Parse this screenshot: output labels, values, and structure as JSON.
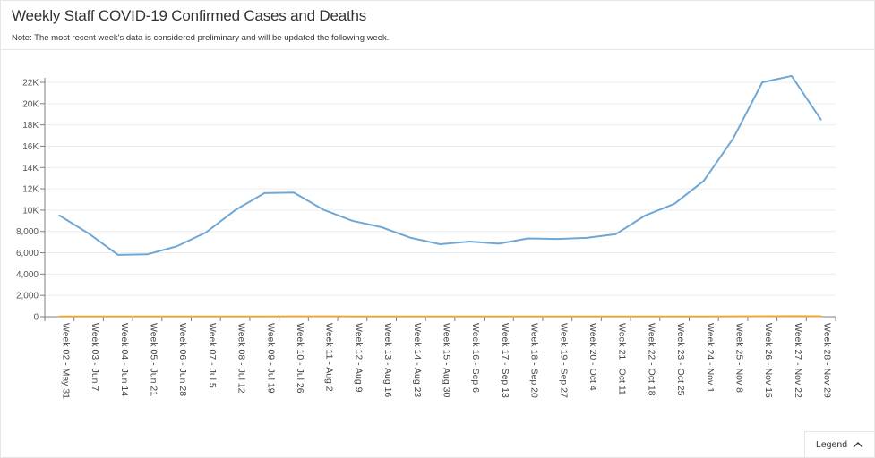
{
  "header": {
    "title": "Weekly Staff COVID-19 Confirmed Cases and Deaths",
    "note": "Note: The most recent week's data is considered preliminary and will be updated the following week."
  },
  "legend_button": {
    "label": "Legend",
    "icon": "chevron-up-icon"
  },
  "colors": {
    "cases": "#6fa8d6",
    "deaths": "#f0a830",
    "grid": "#ececec",
    "axis": "#7f7f7f"
  },
  "chart_data": {
    "type": "line",
    "title": "",
    "xlabel": "",
    "ylabel": "",
    "ylim": [
      0,
      22000
    ],
    "yticks": [
      0,
      2000,
      4000,
      6000,
      8000,
      10000,
      12000,
      14000,
      16000,
      18000,
      20000,
      22000
    ],
    "ytick_labels": [
      "0",
      "2,000",
      "4,000",
      "6,000",
      "8,000",
      "10K",
      "12K",
      "14K",
      "16K",
      "18K",
      "20K",
      "22K"
    ],
    "grid": true,
    "legend": "collapsed",
    "categories": [
      "Week 02 - May 31",
      "Week 03 - Jun 7",
      "Week 04 - Jun 14",
      "Week 05 - Jun 21",
      "Week 06 - Jun 28",
      "Week 07 - Jul 5",
      "Week 08 - Jul 12",
      "Week 09 - Jul 19",
      "Week 10 - Jul 26",
      "Week 11 - Aug 2",
      "Week 12 - Aug 9",
      "Week 13 - Aug 16",
      "Week 14 - Aug 23",
      "Week 15 - Aug 30",
      "Week 16 - Sep 6",
      "Week 17 - Sep 13",
      "Week 18 - Sep 20",
      "Week 19 - Sep 27",
      "Week 20 - Oct 4",
      "Week 21 - Oct 11",
      "Week 22 - Oct 18",
      "Week 23 - Oct 25",
      "Week 24 - Nov 1",
      "Week 25 - Nov 8",
      "Week 26 - Nov 15",
      "Week 27 - Nov 22",
      "Week 28 - Nov 29"
    ],
    "series": [
      {
        "key": "cases",
        "values": [
          9500,
          7800,
          5800,
          5850,
          6600,
          7900,
          10000,
          11600,
          11650,
          10050,
          9000,
          8400,
          7400,
          6800,
          7050,
          6850,
          7350,
          7300,
          7400,
          7750,
          9500,
          10600,
          12750,
          16700,
          22000,
          22600,
          18500
        ]
      },
      {
        "key": "deaths",
        "values": [
          20,
          25,
          20,
          15,
          15,
          15,
          20,
          25,
          30,
          30,
          25,
          25,
          20,
          20,
          15,
          15,
          15,
          15,
          15,
          15,
          20,
          20,
          25,
          35,
          45,
          50,
          45
        ]
      }
    ]
  }
}
